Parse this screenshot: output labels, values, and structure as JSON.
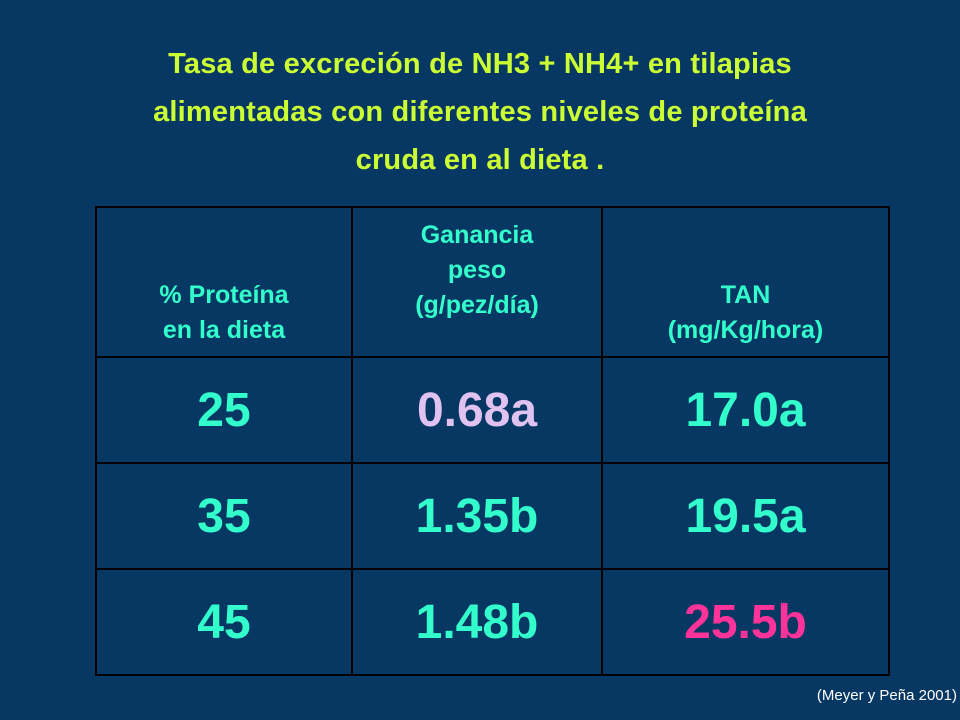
{
  "title": {
    "line1": "Tasa de excreción de NH3 + NH4+ en tilapias",
    "line2": "alimentadas con diferentes niveles de proteína",
    "line3": "cruda en al dieta ."
  },
  "table": {
    "headers": [
      {
        "lines": [
          "% Proteína",
          "en la dieta"
        ]
      },
      {
        "lines": [
          "Ganancia",
          "peso",
          "(g/pez/día)"
        ]
      },
      {
        "lines": [
          "TAN",
          "(mg/Kg/hora)"
        ]
      }
    ],
    "rows": [
      {
        "protein": "25",
        "gain": "0.68a",
        "tan": "17.0a"
      },
      {
        "protein": "35",
        "gain": "1.35b",
        "tan": "19.5a"
      },
      {
        "protein": "45",
        "gain": "1.48b",
        "tan": "25.5b"
      }
    ]
  },
  "source": "(Meyer y Peña 2001)",
  "colors": {
    "background": "#073763",
    "title": "#ccff33",
    "table_text": "#33ffcc",
    "highlight_lilac": "#e0c2f0",
    "highlight_pink": "#ff3399"
  }
}
